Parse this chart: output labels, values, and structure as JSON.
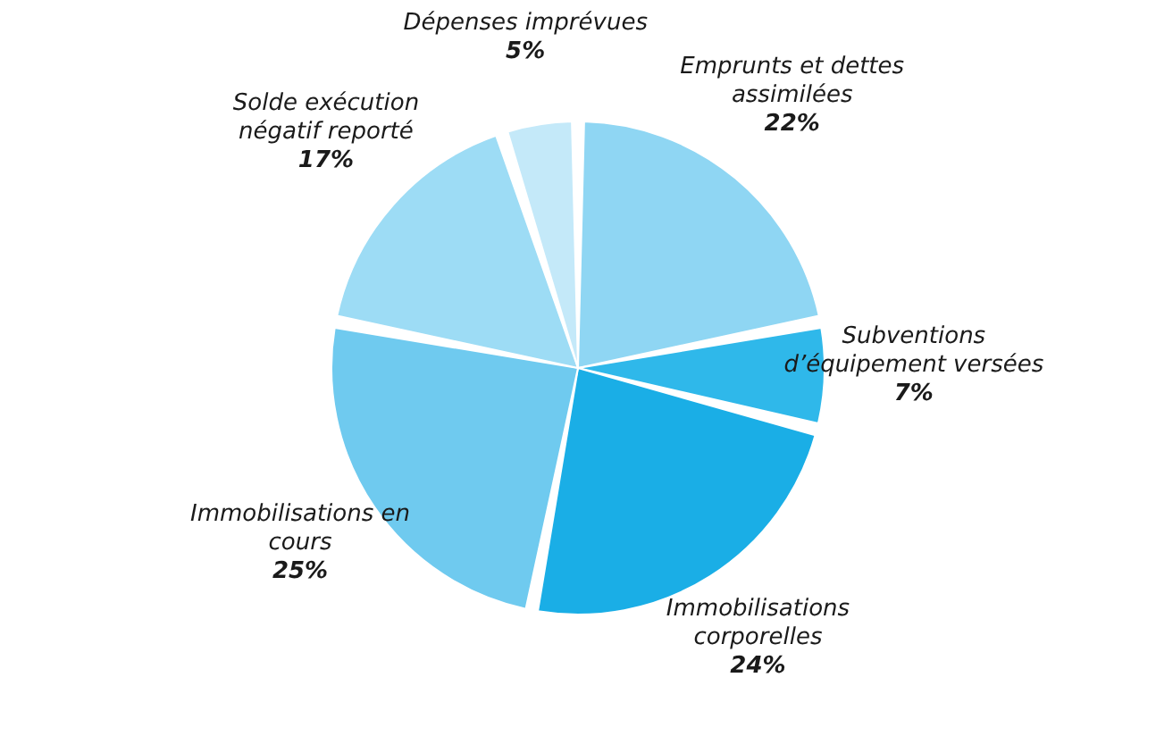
{
  "chart_data": {
    "type": "pie",
    "categories": [
      "Emprunts et dettes assimilées",
      "Subventions d’équipement versées",
      "Immobilisations corporelles",
      "Immobilisations en cours",
      "Solde exécution négatif reporté",
      "Dépenses imprévues"
    ],
    "values": [
      22,
      7,
      24,
      25,
      17,
      5
    ],
    "colors": [
      "#8fd6f3",
      "#2fb8ea",
      "#1aaee6",
      "#6fcaef",
      "#9ddcf5",
      "#c4e9f9"
    ],
    "value_labels": [
      "22%",
      "7%",
      "24%",
      "25%",
      "17%",
      "5%"
    ]
  }
}
